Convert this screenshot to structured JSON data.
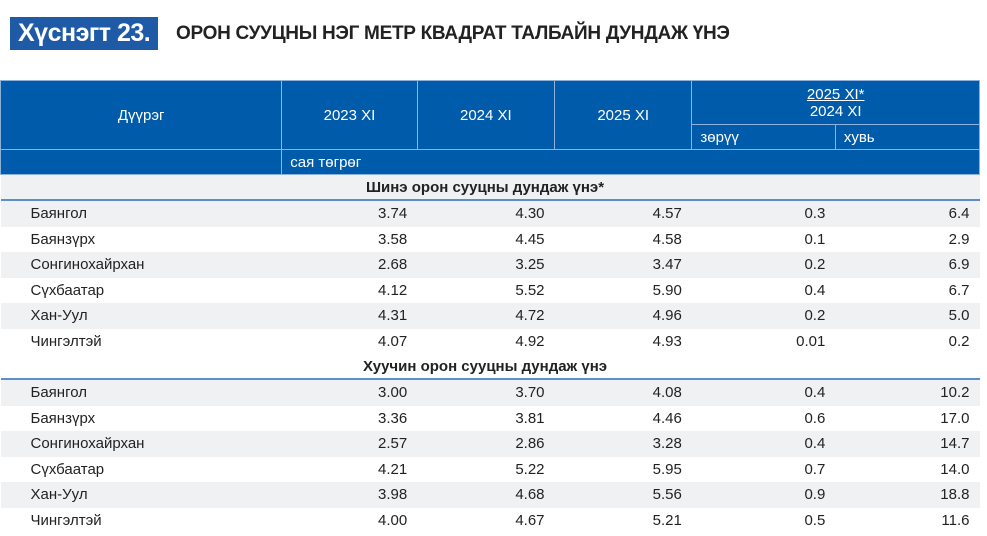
{
  "title": {
    "number": "Хүснэгт 23.",
    "text": "ОРОН СУУЦНЫ НЭГ МЕТР КВАДРАТ ТАЛБАЙН ДУНДАЖ ҮНЭ"
  },
  "header": {
    "district": "Дүүрэг",
    "y2023": "2023 XI",
    "y2024": "2024 XI",
    "y2025": "2025 XI",
    "ratio_top": "2025 XI*",
    "ratio_bottom": "2024 XI",
    "diff": "зөрүү",
    "pct": "хувь",
    "unit": "сая төгрөг"
  },
  "sections": [
    {
      "title": "Шинэ орон сууцны дундаж үнэ*",
      "rows": [
        [
          "Баянгол",
          "3.74",
          "4.30",
          "4.57",
          "0.3",
          "6.4"
        ],
        [
          "Баянзүрх",
          "3.58",
          "4.45",
          "4.58",
          "0.1",
          "2.9"
        ],
        [
          "Сонгинохайрхан",
          "2.68",
          "3.25",
          "3.47",
          "0.2",
          "6.9"
        ],
        [
          "Сүхбаатар",
          "4.12",
          "5.52",
          "5.90",
          "0.4",
          "6.7"
        ],
        [
          "Хан-Уул",
          "4.31",
          "4.72",
          "4.96",
          "0.2",
          "5.0"
        ],
        [
          "Чингэлтэй",
          "4.07",
          "4.92",
          "4.93",
          "0.01",
          "0.2"
        ]
      ]
    },
    {
      "title": "Хуучин орон сууцны дундаж үнэ",
      "rows": [
        [
          "Баянгол",
          "3.00",
          "3.70",
          "4.08",
          "0.4",
          "10.2"
        ],
        [
          "Баянзүрх",
          "3.36",
          "3.81",
          "4.46",
          "0.6",
          "17.0"
        ],
        [
          "Сонгинохайрхан",
          "2.57",
          "2.86",
          "3.28",
          "0.4",
          "14.7"
        ],
        [
          "Сүхбаатар",
          "4.21",
          "5.22",
          "5.95",
          "0.7",
          "14.0"
        ],
        [
          "Хан-Уул",
          "3.98",
          "4.68",
          "5.56",
          "0.9",
          "18.8"
        ],
        [
          "Чингэлтэй",
          "4.00",
          "4.67",
          "5.21",
          "0.5",
          "11.6"
        ]
      ]
    }
  ]
}
